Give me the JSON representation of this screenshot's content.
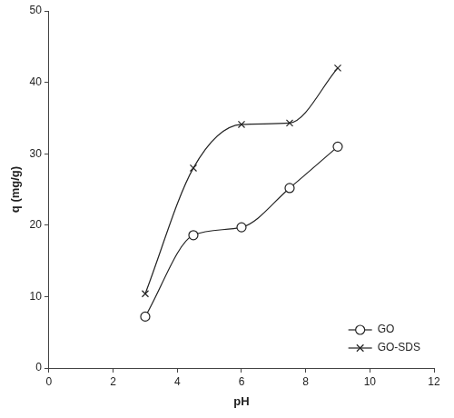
{
  "chart_data": {
    "type": "line",
    "x_label": "pH",
    "y_label": "q (mg/g)",
    "xlim": [
      0,
      12
    ],
    "xticks": [
      0,
      2,
      4,
      6,
      8,
      10,
      12
    ],
    "ylim": [
      0,
      50
    ],
    "yticks": [
      0,
      10,
      20,
      30,
      40,
      50
    ],
    "grid": false,
    "legend": "lower right",
    "series": [
      {
        "name": "GO",
        "color": "#222222",
        "marker": "circle",
        "line_style": "solid",
        "x": [
          3,
          4.5,
          6,
          7.5,
          9
        ],
        "values": [
          7.2,
          18.6,
          19.7,
          25.2,
          31.0
        ]
      },
      {
        "name": "GO-SDS",
        "color": "#222222",
        "marker": "cross",
        "line_style": "solid",
        "x": [
          3,
          4.5,
          6,
          7.5,
          9
        ],
        "values": [
          10.4,
          28.0,
          34.1,
          34.3,
          42.0
        ]
      }
    ]
  }
}
